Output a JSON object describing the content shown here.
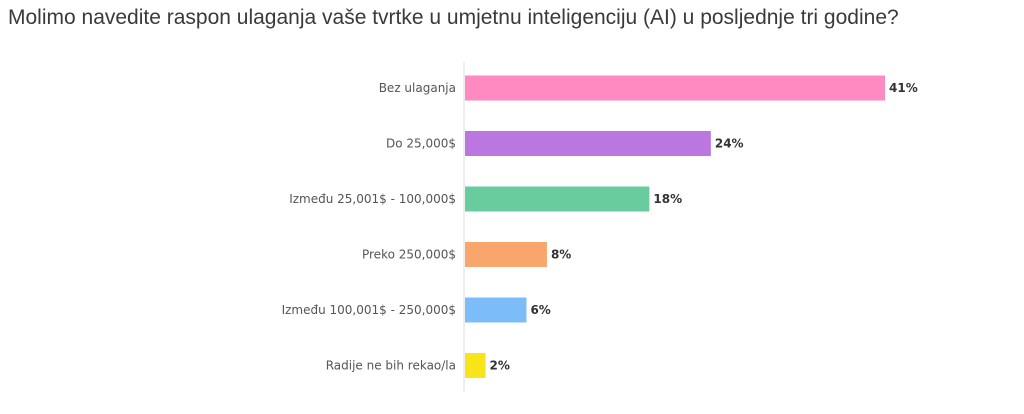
{
  "chart_data": {
    "type": "bar",
    "orientation": "horizontal",
    "title": "Molimo navedite raspon ulaganja vaše tvrtke u umjetnu inteligenciju (AI) u posljednje tri godine?",
    "categories": [
      "Bez ulaganja",
      "Do 25,000$",
      "Između 25,001$ - 100,000$",
      "Preko 250,000$",
      "Između 100,001$ - 250,000$",
      "Radije ne bih rekao/la"
    ],
    "values": [
      41,
      24,
      18,
      8,
      6,
      2
    ],
    "value_labels": [
      "41%",
      "24%",
      "18%",
      "8%",
      "6%",
      "2%"
    ],
    "colors": [
      "#ff8ac2",
      "#bb77e0",
      "#68cc9f",
      "#f9a66c",
      "#7bbcf9",
      "#f9e41c"
    ],
    "unit": "%",
    "xlim": [
      0,
      41
    ],
    "grid": false,
    "legend": "none"
  }
}
